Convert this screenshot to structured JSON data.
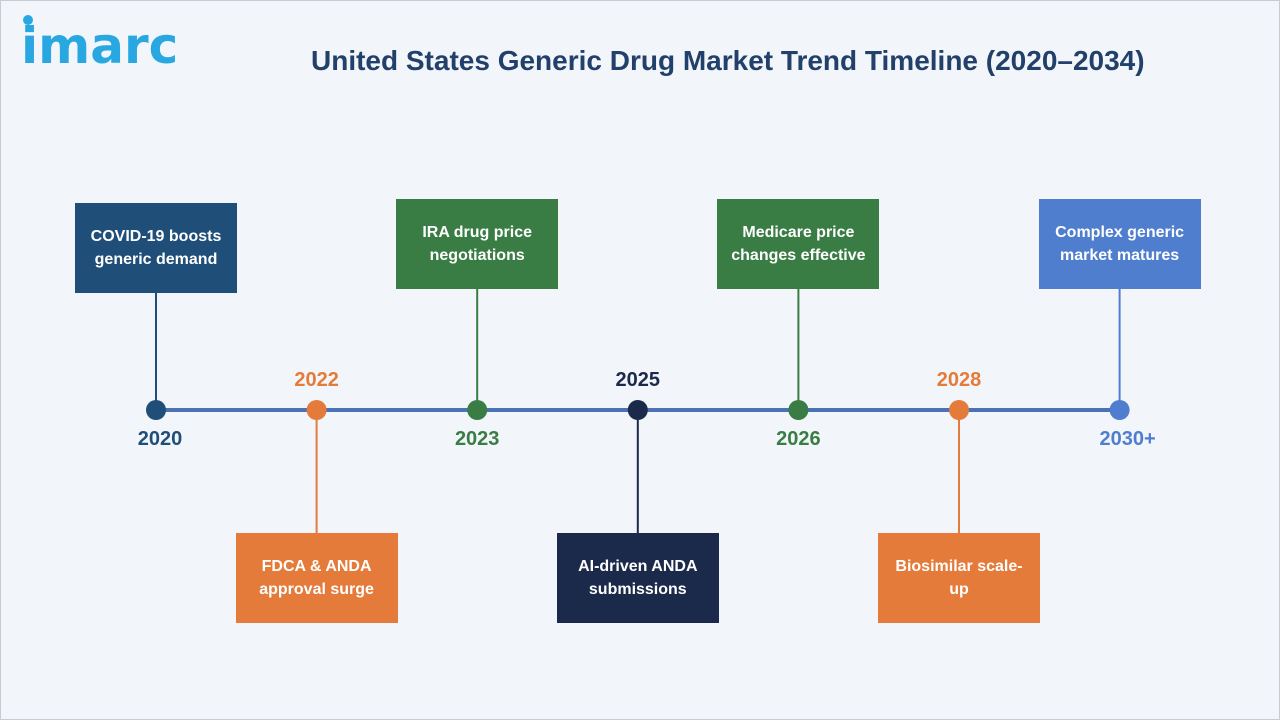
{
  "header": {
    "logo_text": "imarc",
    "title": "United States Generic Drug Market Trend Timeline (2020–2034)"
  },
  "colors": {
    "axis": "#4a72b5",
    "navy": "#1f4e79",
    "green": "#3a7d44",
    "orange": "#e57b3a",
    "dark": "#1b2a4a",
    "blue": "#4f7ecf"
  },
  "timeline": {
    "events": [
      {
        "year": "2020",
        "label": "COVID-19 boosts generic demand",
        "color": "#1f4e79",
        "side": "top"
      },
      {
        "year": "2022",
        "label": "FDCA & ANDA approval surge",
        "color": "#e57b3a",
        "side": "bottom"
      },
      {
        "year": "2023",
        "label": "IRA drug price negotiations",
        "color": "#3a7d44",
        "side": "top"
      },
      {
        "year": "2025",
        "label": "AI-driven ANDA submissions",
        "color": "#1b2a4a",
        "side": "bottom"
      },
      {
        "year": "2026",
        "label": "Medicare price changes effective",
        "color": "#3a7d44",
        "side": "top"
      },
      {
        "year": "2028",
        "label": "Biosimilar scale-up",
        "color": "#e57b3a",
        "side": "bottom"
      },
      {
        "year": "2030+",
        "label": "Complex generic market matures",
        "color": "#4f7ecf",
        "side": "top"
      }
    ]
  }
}
